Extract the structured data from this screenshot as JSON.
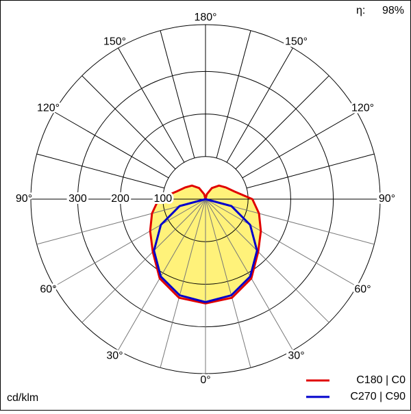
{
  "chart_data": {
    "type": "polar",
    "unit_label": "cd/klm",
    "efficiency_label": "η:",
    "efficiency": "98%",
    "angles": [
      0,
      15,
      30,
      45,
      60,
      75,
      90,
      105,
      120,
      135,
      150,
      165,
      180
    ],
    "series": [
      {
        "name": "C180 | C0",
        "color": "#e00000",
        "fill": "#fff27a",
        "values": [
          245,
          240,
          215,
          175,
          150,
          130,
          110,
          70,
          55,
          45,
          30,
          12,
          0
        ]
      },
      {
        "name": "C270 | C90",
        "color": "#0000cc",
        "values": [
          242,
          234,
          210,
          171,
          121,
          63,
          0,
          0,
          0,
          0,
          0,
          0,
          0
        ]
      }
    ],
    "rlim": [
      0,
      410
    ],
    "rticks": [
      100,
      200,
      300
    ],
    "angle_ticks": [
      {
        "value": 0,
        "label": "0°"
      },
      {
        "value": 30,
        "label": "30°"
      },
      {
        "value": 60,
        "label": "60°"
      },
      {
        "value": 90,
        "label": "90°"
      },
      {
        "value": 120,
        "label": "120°"
      },
      {
        "value": 150,
        "label": "150°"
      },
      {
        "value": 180,
        "label": "180°"
      }
    ]
  }
}
